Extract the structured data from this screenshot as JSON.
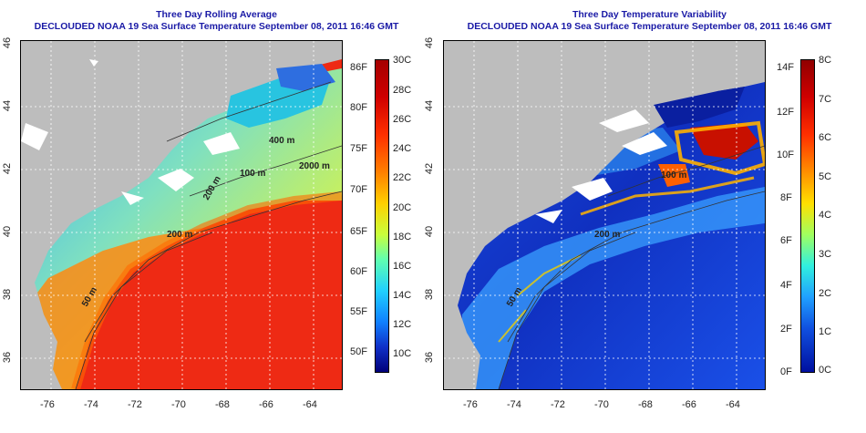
{
  "panels": [
    {
      "title": "Three Day Rolling Average",
      "subtitle": "DECLOUDED NOAA 19 Sea Surface Temperature September 08, 2011 16:46 GMT",
      "colorbar_left": [
        "86F",
        "80F",
        "75F",
        "70F",
        "65F",
        "60F",
        "55F",
        "50F"
      ],
      "colorbar_right": [
        "30C",
        "28C",
        "26C",
        "24C",
        "22C",
        "20C",
        "18C",
        "16C",
        "14C",
        "12C",
        "10C"
      ],
      "contours": [
        "400 m",
        "2000 m",
        "100 m",
        "200 m",
        "50 m",
        "200 m"
      ]
    },
    {
      "title": "Three Day Temperature Variability",
      "subtitle": "DECLOUDED NOAA 19 Sea Surface Temperature September 08, 2011 16:46 GMT",
      "colorbar_left": [
        "14F",
        "12F",
        "10F",
        "8F",
        "6F",
        "4F",
        "2F",
        "0F"
      ],
      "colorbar_right": [
        "8C",
        "7C",
        "6C",
        "5C",
        "4C",
        "3C",
        "2C",
        "1C",
        "0C"
      ],
      "contours": [
        "100 m",
        "200 m",
        "50 m"
      ]
    }
  ],
  "lat_ticks": [
    "36",
    "38",
    "40",
    "42",
    "44",
    "46"
  ],
  "lon_ticks": [
    "-76",
    "-74",
    "-72",
    "-70",
    "-68",
    "-66",
    "-64"
  ],
  "colors": {
    "land": "#bdbdbd",
    "title": "#1a1aa6"
  }
}
